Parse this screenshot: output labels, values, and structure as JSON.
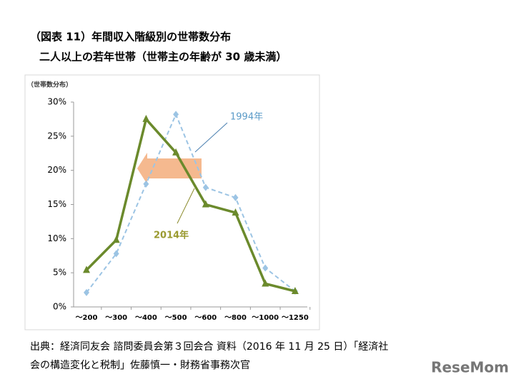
{
  "chart_data": {
    "type": "line",
    "title": "（図表 11）年間収入階級別の世帯数分布",
    "subtitle": "二人以上の若年世帯（世帯主の年齢が 30 歳未満）",
    "y_label": "（世帯数分布）",
    "categories": [
      "～200",
      "～300",
      "～400",
      "～500",
      "～600",
      "～800",
      "～1000",
      "～1250"
    ],
    "series": [
      {
        "name": "1994年",
        "color": "#9cc4e4",
        "values": [
          2.1,
          7.8,
          18,
          28.2,
          17.5,
          16,
          5.7,
          2.3
        ]
      },
      {
        "name": "2014年",
        "color": "#6b8a2c",
        "values": [
          5.4,
          9.8,
          27.5,
          22.6,
          15,
          13.8,
          3.4,
          2.3
        ]
      }
    ],
    "ylim": [
      0,
      30
    ],
    "yticks": [
      {
        "value": 0,
        "label": "0%"
      },
      {
        "value": 5,
        "label": "5%"
      },
      {
        "value": 10,
        "label": "10%"
      },
      {
        "value": 15,
        "label": "15%"
      },
      {
        "value": 20,
        "label": "20%"
      },
      {
        "value": 25,
        "label": "25%"
      },
      {
        "value": 30,
        "label": "30%"
      }
    ],
    "source": [
      "出典：経済同友会 諮問委員会第３回会合 資料（2016 年 11 月 25 日）「経済社",
      "会の構造変化と税制」佐藤慎一・財務省事務次官"
    ],
    "watermark": "ReseMom"
  }
}
